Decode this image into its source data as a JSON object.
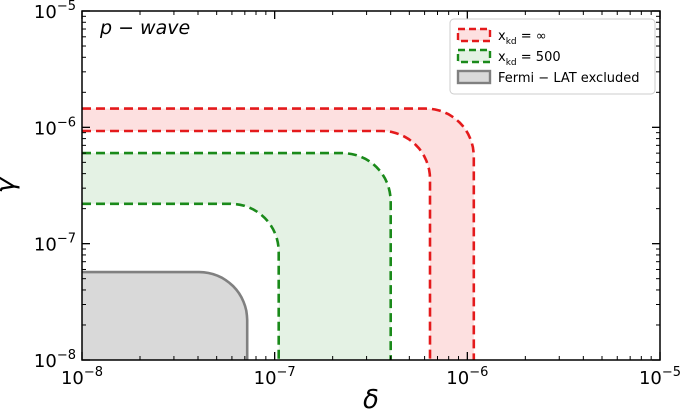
{
  "chart_data": {
    "type": "area",
    "annotation": "p − wave",
    "xlabel": "δ",
    "ylabel": "γ",
    "x_scale": "log",
    "y_scale": "log",
    "xlim": [
      1e-08,
      1e-05
    ],
    "ylim": [
      1e-08,
      1e-05
    ],
    "x_ticks": [
      {
        "value": 1e-08,
        "label_base": "10",
        "label_exp": "−8"
      },
      {
        "value": 1e-07,
        "label_base": "10",
        "label_exp": "−7"
      },
      {
        "value": 1e-06,
        "label_base": "10",
        "label_exp": "−6"
      },
      {
        "value": 1e-05,
        "label_base": "10",
        "label_exp": "−5"
      }
    ],
    "y_ticks": [
      {
        "value": 1e-08,
        "label_base": "10",
        "label_exp": "−8"
      },
      {
        "value": 1e-07,
        "label_base": "10",
        "label_exp": "−7"
      },
      {
        "value": 1e-06,
        "label_base": "10",
        "label_exp": "−6"
      },
      {
        "value": 1e-05,
        "label_base": "10",
        "label_exp": "−5"
      }
    ],
    "grid": false,
    "legend_position": "top-right",
    "series": [
      {
        "name": "x_kd = ∞",
        "legend_main": "x",
        "legend_sub": "kd",
        "legend_tail": " = ∞",
        "color": "#e41a1c",
        "fill": "#fde0e0",
        "style": "dashed band",
        "upper_boundary": {
          "gamma_plateau": 1.45e-06,
          "delta_max": 1.08e-06
        },
        "lower_boundary": {
          "gamma_plateau": 9.3e-07,
          "delta_max": 6.4e-07
        }
      },
      {
        "name": "x_kd = 500",
        "legend_main": "x",
        "legend_sub": "kd",
        "legend_tail": " = 500",
        "color": "#1a8a1a",
        "fill": "#e4f2e4",
        "style": "dashed band",
        "upper_boundary": {
          "gamma_plateau": 6e-07,
          "delta_max": 4e-07
        },
        "lower_boundary": {
          "gamma_plateau": 2.2e-07,
          "delta_max": 1.05e-07
        }
      },
      {
        "name": "Fermi − LAT excluded",
        "color": "#808080",
        "fill": "#d9d9d9",
        "style": "solid filled",
        "boundary": {
          "gamma_plateau": 5.7e-08,
          "delta_max": 7.2e-08
        }
      }
    ]
  }
}
